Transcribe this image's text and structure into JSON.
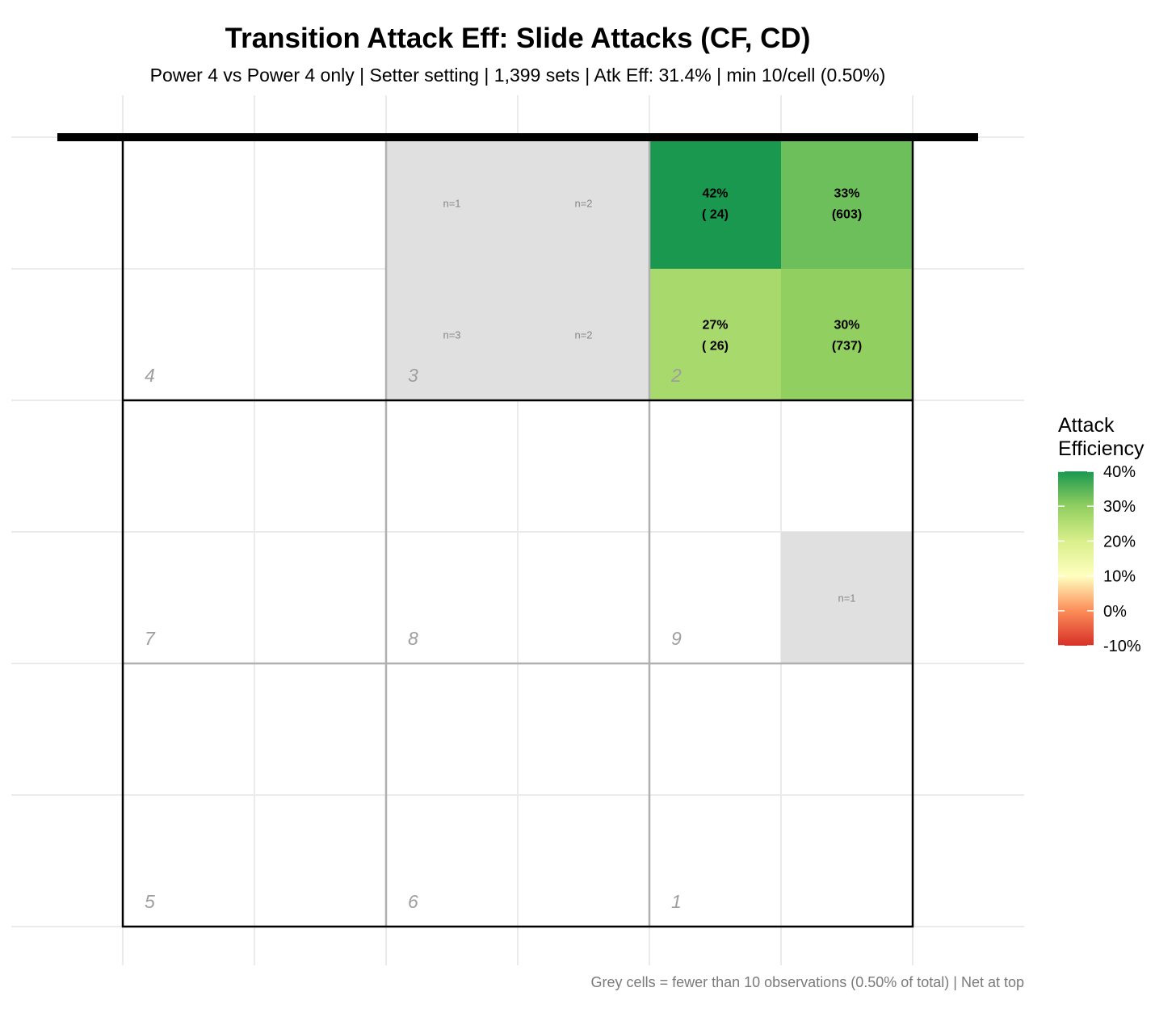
{
  "title": "Transition Attack Eff: Slide Attacks (CF, CD)",
  "subtitle": "Power 4 vs Power 4 only | Setter setting | 1,399 sets | Atk Eff: 31.4% | min 10/cell (0.50%)",
  "caption": "Grey cells = fewer than 10 observations (0.50% of total) | Net at top",
  "legend": {
    "title_line1": "Attack",
    "title_line2": "Efficiency",
    "ticks": [
      "40%",
      "30%",
      "20%",
      "10%",
      "0%",
      "-10%"
    ]
  },
  "colors": {
    "grey_cell": "#e0e0e0",
    "gradient": [
      "#d73027",
      "#fc8d59",
      "#fee08b",
      "#ffffbf",
      "#d9ef8b",
      "#91cf60",
      "#1a9850"
    ]
  },
  "chart_data": {
    "type": "heatmap",
    "title": "Transition Attack Eff: Slide Attacks (CF, CD)",
    "color_scale": {
      "min": -10,
      "max": 40,
      "unit": "%"
    },
    "min_count": 10,
    "zones": [
      {
        "label": "4",
        "row": 0,
        "col": 0
      },
      {
        "label": "3",
        "row": 0,
        "col": 1
      },
      {
        "label": "2",
        "row": 0,
        "col": 2
      },
      {
        "label": "7",
        "row": 1,
        "col": 0
      },
      {
        "label": "8",
        "row": 1,
        "col": 1
      },
      {
        "label": "9",
        "row": 1,
        "col": 2
      },
      {
        "label": "5",
        "row": 2,
        "col": 0
      },
      {
        "label": "6",
        "row": 2,
        "col": 1
      },
      {
        "label": "1",
        "row": 2,
        "col": 2
      }
    ],
    "cells": [
      {
        "row": 0,
        "col": 2,
        "n": 1,
        "label": "n=1"
      },
      {
        "row": 0,
        "col": 3,
        "n": 2,
        "label": "n=2"
      },
      {
        "row": 1,
        "col": 2,
        "n": 3,
        "label": "n=3"
      },
      {
        "row": 1,
        "col": 3,
        "n": 2,
        "label": "n=2"
      },
      {
        "row": 0,
        "col": 4,
        "n": 24,
        "eff": 42,
        "label": "42%",
        "count_label": "( 24)"
      },
      {
        "row": 0,
        "col": 5,
        "n": 603,
        "eff": 33,
        "label": "33%",
        "count_label": "(603)"
      },
      {
        "row": 1,
        "col": 4,
        "n": 26,
        "eff": 27,
        "label": "27%",
        "count_label": "( 26)"
      },
      {
        "row": 1,
        "col": 5,
        "n": 737,
        "eff": 30,
        "label": "30%",
        "count_label": "(737)"
      },
      {
        "row": 3,
        "col": 5,
        "n": 1,
        "label": "n=1"
      }
    ]
  }
}
